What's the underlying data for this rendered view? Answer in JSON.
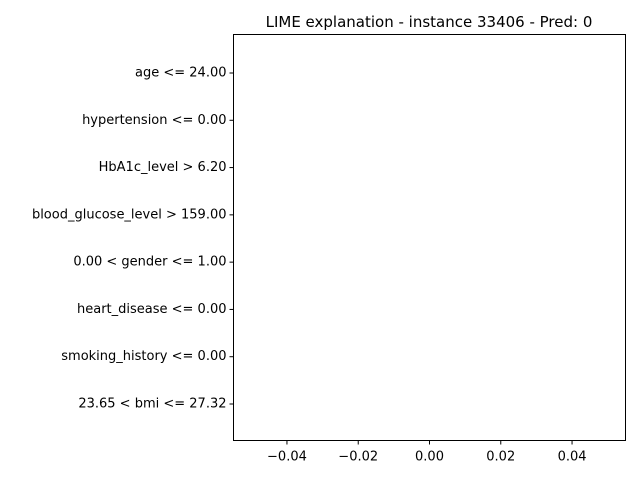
{
  "chart_data": {
    "type": "bar",
    "orientation": "horizontal",
    "title": "LIME explanation - instance 33406 - Pred: 0",
    "xlabel": "",
    "ylabel": "",
    "categories": [
      "age <= 24.00",
      "hypertension <= 0.00",
      "HbA1c_level > 6.20",
      "blood_glucose_level > 159.00",
      "0.00 < gender <= 1.00",
      "heart_disease <= 0.00",
      "smoking_history <= 0.00",
      "23.65 < bmi <= 27.32"
    ],
    "values": [
      0,
      0,
      0,
      0,
      0,
      0,
      0,
      0
    ],
    "xlim": [
      -0.055,
      0.055
    ],
    "xticks": [
      -0.04,
      -0.02,
      0.0,
      0.02,
      0.04
    ],
    "xtick_labels": [
      "−0.04",
      "−0.02",
      "0.00",
      "0.02",
      "0.04"
    ],
    "grid": false,
    "legend": "none"
  }
}
